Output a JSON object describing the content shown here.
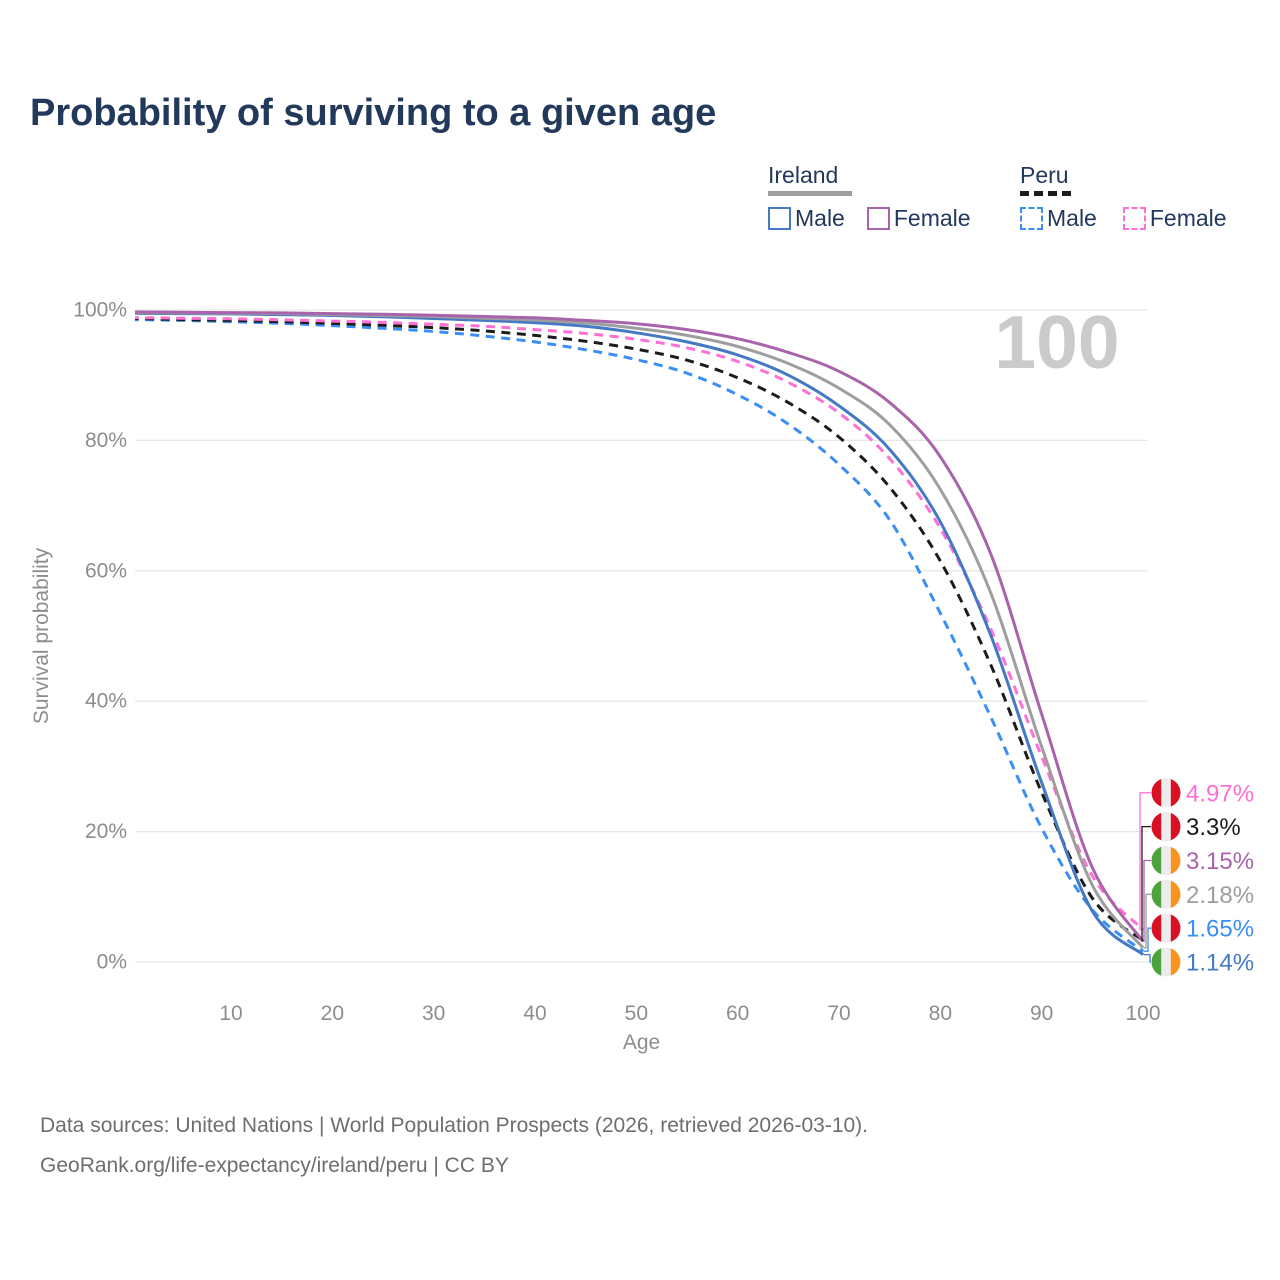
{
  "header": {
    "title": "Probability of surviving to a given age"
  },
  "legend": {
    "groups": [
      {
        "id": "ireland",
        "title": "Ireland",
        "underline_series": "ireland-total",
        "items": [
          {
            "series": "ireland-male",
            "label": "Male"
          },
          {
            "series": "ireland-female",
            "label": "Female"
          }
        ]
      },
      {
        "id": "peru",
        "title": "Peru",
        "underline_series": "peru-total",
        "items": [
          {
            "series": "peru-male",
            "label": "Male"
          },
          {
            "series": "peru-female",
            "label": "Female"
          }
        ]
      }
    ]
  },
  "footer": {
    "line1": "Data sources: United Nations | World Population Prospects (2026, retrieved 2026-03-10).",
    "line2": "GeoRank.org/life-expectancy/ireland/peru | CC BY"
  },
  "chart_data": {
    "type": "line",
    "title": "Probability of surviving to a given age",
    "xlabel": "Age",
    "ylabel": "Survival probability",
    "xlim": [
      0,
      100
    ],
    "ylim": [
      0,
      100
    ],
    "x_ticks": [
      10,
      20,
      30,
      40,
      50,
      60,
      70,
      80,
      90,
      100
    ],
    "y_tick_values": [
      0,
      20,
      40,
      60,
      80,
      100
    ],
    "y_tick_labels": [
      "0%",
      "20%",
      "40%",
      "60%",
      "80%",
      "100%"
    ],
    "grid": "horizontal",
    "legend_position": "top-right",
    "watermark_age_label": "100",
    "ages": [
      0,
      5,
      10,
      15,
      20,
      25,
      30,
      35,
      40,
      45,
      50,
      55,
      60,
      65,
      70,
      75,
      80,
      85,
      90,
      95,
      100
    ],
    "series": [
      {
        "id": "peru-male",
        "name": "Peru Male",
        "country": "Peru",
        "sex": "Male",
        "color": "#3a8ef5",
        "dash": true,
        "flag": "peru",
        "end_label": "1.65%",
        "values": [
          98.55,
          98.4,
          98.2,
          97.95,
          97.6,
          97.2,
          96.7,
          96.0,
          95.1,
          93.9,
          92.4,
          90.3,
          87.0,
          82.5,
          76.3,
          67.8,
          53.5,
          37.5,
          20.5,
          8.0,
          1.65
        ]
      },
      {
        "id": "peru-total",
        "name": "Peru",
        "country": "Peru",
        "sex": "Both",
        "color": "#1c1c1c",
        "dash": true,
        "flag": "peru",
        "end_label": "3.3%",
        "values": [
          98.7,
          98.55,
          98.4,
          98.2,
          97.95,
          97.65,
          97.3,
          96.8,
          96.1,
          95.2,
          94.0,
          92.3,
          89.6,
          85.8,
          80.5,
          72.8,
          61.5,
          45.5,
          26.0,
          9.8,
          3.3
        ]
      },
      {
        "id": "peru-female",
        "name": "Peru Female",
        "country": "Peru",
        "sex": "Female",
        "color": "#ff70d6",
        "dash": true,
        "flag": "peru",
        "end_label": "4.97%",
        "values": [
          98.85,
          98.75,
          98.65,
          98.5,
          98.3,
          98.1,
          97.8,
          97.5,
          97.0,
          96.4,
          95.5,
          94.2,
          92.1,
          88.9,
          84.2,
          77.2,
          66.5,
          51.0,
          31.5,
          13.2,
          4.97
        ]
      },
      {
        "id": "ireland-male",
        "name": "Ireland Male",
        "country": "Ireland",
        "sex": "Male",
        "color": "#4479c4",
        "dash": false,
        "flag": "ireland",
        "end_label": "1.14%",
        "values": [
          99.5,
          99.45,
          99.4,
          99.3,
          99.15,
          98.95,
          98.7,
          98.4,
          98.05,
          97.5,
          96.5,
          95.1,
          93.1,
          90.0,
          85.3,
          78.6,
          67.5,
          50.0,
          27.5,
          7.8,
          1.14
        ]
      },
      {
        "id": "ireland-total",
        "name": "Ireland",
        "country": "Ireland",
        "sex": "Both",
        "color": "#9e9e9e",
        "dash": false,
        "flag": "ireland",
        "end_label": "2.18%",
        "values": [
          99.6,
          99.55,
          99.5,
          99.45,
          99.3,
          99.15,
          99.0,
          98.75,
          98.45,
          98.0,
          97.2,
          96.1,
          94.4,
          91.8,
          88.0,
          82.4,
          72.5,
          56.5,
          33.0,
          11.8,
          2.18
        ]
      },
      {
        "id": "ireland-female",
        "name": "Ireland Female",
        "country": "Ireland",
        "sex": "Female",
        "color": "#a963ab",
        "dash": false,
        "flag": "ireland",
        "end_label": "3.15%",
        "values": [
          99.7,
          99.65,
          99.6,
          99.55,
          99.45,
          99.35,
          99.2,
          99.0,
          98.8,
          98.4,
          97.9,
          97.0,
          95.6,
          93.5,
          90.6,
          85.8,
          77.5,
          62.5,
          38.0,
          14.5,
          3.15
        ]
      }
    ],
    "flags": {
      "ireland": [
        "#4CA23D",
        "#ececec",
        "#F7941E"
      ],
      "peru": [
        "#D91023",
        "#ececec",
        "#D91023"
      ]
    },
    "colors": {
      "grid": "#e7e7e7",
      "axis_text": "#8d8d8d",
      "watermark": "#cbcbcb",
      "title_text": "#22395c",
      "footer_text": "#6e6e6e"
    }
  }
}
